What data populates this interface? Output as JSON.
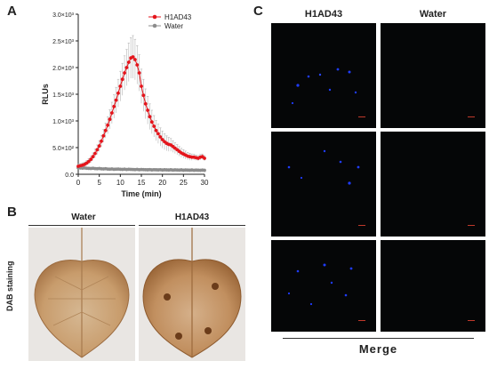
{
  "panels": {
    "a": "A",
    "b": "B",
    "c": "C"
  },
  "panel_b": {
    "labels": [
      "Water",
      "H1AD43"
    ],
    "y_label": "DAB staining"
  },
  "panel_c": {
    "columns": [
      "H1AD43",
      "Water"
    ],
    "footer": "Merge"
  },
  "chart_data": {
    "type": "line",
    "xlabel": "Time (min)",
    "ylabel": "RLUs",
    "x_ticks": [
      0,
      5,
      10,
      15,
      20,
      25,
      30
    ],
    "y_ticks": [
      "0.0",
      "5.0×10²",
      "1.0×10³",
      "1.5×10³",
      "2.0×10³",
      "2.5×10³",
      "3.0×10³"
    ],
    "xlim": [
      0,
      30
    ],
    "ylim": [
      0,
      3000
    ],
    "series": [
      {
        "name": "H1AD43",
        "color": "#e4141b",
        "x": [
          0,
          0.5,
          1,
          1.5,
          2,
          2.5,
          3,
          3.5,
          4,
          4.5,
          5,
          5.5,
          6,
          6.5,
          7,
          7.5,
          8,
          8.5,
          9,
          9.5,
          10,
          10.5,
          11,
          11.5,
          12,
          12.5,
          13,
          13.5,
          14,
          14.5,
          15,
          15.5,
          16,
          16.5,
          17,
          17.5,
          18,
          18.5,
          19,
          19.5,
          20,
          20.5,
          21,
          21.5,
          22,
          22.5,
          23,
          23.5,
          24,
          24.5,
          25,
          25.5,
          26,
          26.5,
          27,
          27.5,
          28,
          28.5,
          29,
          29.5,
          30
        ],
        "y": [
          150,
          160,
          170,
          185,
          210,
          240,
          280,
          330,
          390,
          460,
          530,
          620,
          720,
          820,
          920,
          1030,
          1150,
          1270,
          1390,
          1520,
          1650,
          1780,
          1900,
          2000,
          2100,
          2180,
          2200,
          2150,
          2050,
          1900,
          1650,
          1480,
          1320,
          1200,
          1080,
          980,
          900,
          820,
          760,
          700,
          650,
          610,
          580,
          560,
          550,
          520,
          490,
          460,
          430,
          400,
          380,
          360,
          340,
          330,
          320,
          320,
          310,
          300,
          320,
          330,
          300
        ],
        "err": [
          40,
          40,
          45,
          45,
          50,
          55,
          60,
          70,
          80,
          90,
          100,
          110,
          120,
          140,
          160,
          180,
          200,
          220,
          240,
          260,
          280,
          300,
          320,
          340,
          360,
          380,
          400,
          380,
          360,
          340,
          320,
          300,
          280,
          260,
          240,
          220,
          200,
          190,
          180,
          170,
          160,
          150,
          140,
          130,
          120,
          110,
          100,
          95,
          90,
          85,
          80,
          75,
          70,
          65,
          60,
          55,
          50,
          50,
          50,
          50,
          50
        ]
      },
      {
        "name": "Water",
        "color": "#8c8c8c",
        "x": [
          0,
          0.5,
          1,
          1.5,
          2,
          2.5,
          3,
          3.5,
          4,
          4.5,
          5,
          5.5,
          6,
          6.5,
          7,
          7.5,
          8,
          8.5,
          9,
          9.5,
          10,
          10.5,
          11,
          11.5,
          12,
          12.5,
          13,
          13.5,
          14,
          14.5,
          15,
          15.5,
          16,
          16.5,
          17,
          17.5,
          18,
          18.5,
          19,
          19.5,
          20,
          20.5,
          21,
          21.5,
          22,
          22.5,
          23,
          23.5,
          24,
          24.5,
          25,
          25.5,
          26,
          26.5,
          27,
          27.5,
          28,
          28.5,
          29,
          29.5,
          30
        ],
        "y": [
          120,
          118,
          115,
          118,
          112,
          110,
          108,
          112,
          106,
          104,
          108,
          102,
          100,
          104,
          98,
          96,
          100,
          94,
          96,
          98,
          94,
          92,
          96,
          90,
          94,
          92,
          90,
          88,
          92,
          86,
          90,
          88,
          86,
          84,
          88,
          82,
          86,
          84,
          82,
          86,
          80,
          84,
          82,
          80,
          84,
          78,
          82,
          80,
          78,
          82,
          76,
          80,
          78,
          76,
          80,
          74,
          78,
          76,
          74,
          78,
          74
        ],
        "err": [
          20,
          20,
          20,
          20,
          20,
          20,
          20,
          20,
          20,
          20,
          20,
          20,
          20,
          20,
          20,
          20,
          20,
          20,
          20,
          20,
          20,
          20,
          20,
          20,
          20,
          20,
          20,
          20,
          20,
          20,
          20,
          20,
          20,
          20,
          20,
          20,
          20,
          20,
          20,
          20,
          20,
          20,
          20,
          20,
          20,
          20,
          20,
          20,
          20,
          20,
          20,
          20,
          20,
          20,
          20,
          20,
          20,
          20,
          20,
          20,
          20
        ]
      }
    ],
    "legend_position": "top-right"
  }
}
